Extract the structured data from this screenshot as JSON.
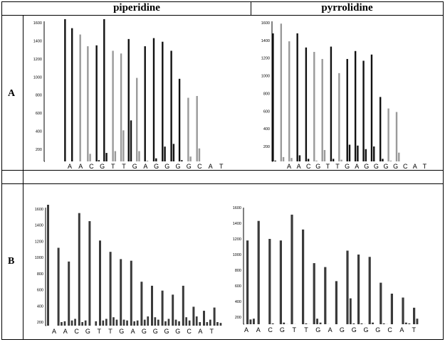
{
  "table": {
    "header_left": "piperidine",
    "header_right": "pyrrolidine",
    "row_a": "A",
    "row_b": "B"
  },
  "chart_data": [
    {
      "id": "A-piperidine",
      "type": "bar",
      "title": "",
      "ylim": [
        0,
        1700
      ],
      "yticks": [
        200,
        400,
        600,
        800,
        1000,
        1200,
        1400,
        1600
      ],
      "ytick_labels": [
        "200",
        "400",
        "600",
        "800",
        "1000",
        "1200",
        "1400",
        "1600"
      ],
      "categories": [
        "A",
        "A",
        "C",
        "G",
        "T",
        "T",
        "G",
        "A",
        "G",
        "G",
        "G",
        "G",
        "C",
        "A",
        "T"
      ],
      "bars": [
        {
          "pos": -0.6,
          "h": 1640,
          "c": "dark"
        },
        {
          "pos": 0.0,
          "h": 1540,
          "c": "dark"
        },
        {
          "pos": 0.7,
          "h": 1470,
          "c": "light"
        },
        {
          "pos": 1.35,
          "h": 1340,
          "c": "light"
        },
        {
          "pos": 1.55,
          "h": 150,
          "c": "light"
        },
        {
          "pos": 2.1,
          "h": 1350,
          "c": "dark"
        },
        {
          "pos": 2.3,
          "h": 80,
          "c": "dark"
        },
        {
          "pos": 2.75,
          "h": 1640,
          "c": "dark"
        },
        {
          "pos": 2.95,
          "h": 160,
          "c": "dark"
        },
        {
          "pos": 3.5,
          "h": 1290,
          "c": "light"
        },
        {
          "pos": 3.7,
          "h": 180,
          "c": "light"
        },
        {
          "pos": 4.2,
          "h": 1260,
          "c": "light"
        },
        {
          "pos": 4.4,
          "h": 410,
          "c": "light"
        },
        {
          "pos": 4.85,
          "h": 1420,
          "c": "dark"
        },
        {
          "pos": 5.05,
          "h": 520,
          "c": "dark"
        },
        {
          "pos": 5.55,
          "h": 990,
          "c": "light"
        },
        {
          "pos": 5.75,
          "h": 180,
          "c": "light"
        },
        {
          "pos": 6.25,
          "h": 1340,
          "c": "dark"
        },
        {
          "pos": 6.45,
          "h": 70,
          "c": "dark"
        },
        {
          "pos": 7.0,
          "h": 1430,
          "c": "dark"
        },
        {
          "pos": 7.2,
          "h": 100,
          "c": "dark"
        },
        {
          "pos": 7.75,
          "h": 1390,
          "c": "dark"
        },
        {
          "pos": 7.95,
          "h": 230,
          "c": "dark"
        },
        {
          "pos": 8.5,
          "h": 1290,
          "c": "dark"
        },
        {
          "pos": 8.7,
          "h": 260,
          "c": "dark"
        },
        {
          "pos": 9.2,
          "h": 980,
          "c": "dark"
        },
        {
          "pos": 9.4,
          "h": 80,
          "c": "dark"
        },
        {
          "pos": 9.95,
          "h": 770,
          "c": "light"
        },
        {
          "pos": 10.15,
          "h": 120,
          "c": "light"
        },
        {
          "pos": 10.7,
          "h": 790,
          "c": "light"
        },
        {
          "pos": 10.9,
          "h": 210,
          "c": "light"
        }
      ]
    },
    {
      "id": "A-pyrrolidine",
      "type": "bar",
      "title": "",
      "ylim": [
        0,
        1700
      ],
      "yticks": [
        200,
        400,
        600,
        800,
        1000,
        1200,
        1400,
        1600
      ],
      "ytick_labels": [
        "200",
        "400",
        "600",
        "800",
        "1000",
        "1200",
        "1400",
        "1600"
      ],
      "categories": [
        "A",
        "A",
        "C",
        "G",
        "T",
        "T",
        "G",
        "A",
        "G",
        "G",
        "G",
        "G",
        "C",
        "A",
        "T"
      ],
      "bars": [
        {
          "pos": -0.6,
          "h": 1480,
          "c": "dark"
        },
        {
          "pos": -0.4,
          "h": 40,
          "c": "dark"
        },
        {
          "pos": 0.1,
          "h": 1590,
          "c": "light"
        },
        {
          "pos": 0.3,
          "h": 80,
          "c": "light"
        },
        {
          "pos": 0.8,
          "h": 1390,
          "c": "light"
        },
        {
          "pos": 1.0,
          "h": 70,
          "c": "light"
        },
        {
          "pos": 1.5,
          "h": 1480,
          "c": "dark"
        },
        {
          "pos": 1.7,
          "h": 100,
          "c": "dark"
        },
        {
          "pos": 2.25,
          "h": 1320,
          "c": "dark"
        },
        {
          "pos": 2.45,
          "h": 60,
          "c": "dark"
        },
        {
          "pos": 2.95,
          "h": 1270,
          "c": "light"
        },
        {
          "pos": 3.15,
          "h": 40,
          "c": "light"
        },
        {
          "pos": 3.65,
          "h": 1190,
          "c": "light"
        },
        {
          "pos": 3.85,
          "h": 160,
          "c": "light"
        },
        {
          "pos": 4.4,
          "h": 1330,
          "c": "dark"
        },
        {
          "pos": 4.6,
          "h": 60,
          "c": "dark"
        },
        {
          "pos": 5.1,
          "h": 1030,
          "c": "light"
        },
        {
          "pos": 5.3,
          "h": 50,
          "c": "light"
        },
        {
          "pos": 5.8,
          "h": 1190,
          "c": "dark"
        },
        {
          "pos": 6.0,
          "h": 220,
          "c": "dark"
        },
        {
          "pos": 6.5,
          "h": 1280,
          "c": "dark"
        },
        {
          "pos": 6.7,
          "h": 210,
          "c": "dark"
        },
        {
          "pos": 7.2,
          "h": 1170,
          "c": "dark"
        },
        {
          "pos": 7.4,
          "h": 170,
          "c": "dark"
        },
        {
          "pos": 7.9,
          "h": 1240,
          "c": "dark"
        },
        {
          "pos": 8.1,
          "h": 200,
          "c": "dark"
        },
        {
          "pos": 8.65,
          "h": 760,
          "c": "dark"
        },
        {
          "pos": 8.85,
          "h": 60,
          "c": "dark"
        },
        {
          "pos": 9.35,
          "h": 630,
          "c": "light"
        },
        {
          "pos": 9.55,
          "h": 40,
          "c": "light"
        },
        {
          "pos": 10.05,
          "h": 590,
          "c": "light"
        },
        {
          "pos": 10.25,
          "h": 130,
          "c": "light"
        }
      ]
    },
    {
      "id": "B-piperidine",
      "type": "bar",
      "title": "",
      "ylim": [
        150,
        1700
      ],
      "yticks": [
        200,
        400,
        600,
        800,
        1000,
        1200,
        1400,
        1600
      ],
      "ytick_labels": [
        "200",
        "400",
        "600",
        "800",
        "1000",
        "1200",
        "1400",
        "1600"
      ],
      "categories": [
        "A",
        "A",
        "C",
        "G",
        "T",
        "T",
        "G",
        "A",
        "G",
        "G",
        "G",
        "G",
        "C",
        "A",
        "T"
      ],
      "bar_color": "#3a3a3a",
      "groups": [
        [
          1690,
          0,
          0
        ],
        [
          1120,
          200,
          210
        ],
        [
          950,
          220,
          240
        ],
        [
          1550,
          200,
          220
        ],
        [
          1450,
          0,
          210
        ],
        [
          1210,
          220,
          240
        ],
        [
          1070,
          260,
          230
        ],
        [
          980,
          230,
          220
        ],
        [
          960,
          210,
          220
        ],
        [
          700,
          230,
          270
        ],
        [
          650,
          260,
          230
        ],
        [
          590,
          210,
          240
        ],
        [
          540,
          230,
          210
        ],
        [
          650,
          260,
          220
        ],
        [
          390,
          270,
          200
        ],
        [
          340,
          200,
          230
        ],
        [
          380,
          200,
          190
        ]
      ]
    },
    {
      "id": "B-pyrrolidine",
      "type": "bar",
      "title": "",
      "ylim": [
        0,
        1700
      ],
      "yticks": [
        200,
        400,
        600,
        800,
        1000,
        1200,
        1400,
        1600
      ],
      "ytick_labels": [
        "200",
        "400",
        "600",
        "800",
        "1000",
        "1200",
        "1400",
        "1600"
      ],
      "categories": [
        "A",
        "A",
        "C",
        "G",
        "T",
        "T",
        "G",
        "A",
        "G",
        "G",
        "G",
        "G",
        "C",
        "A",
        "T"
      ],
      "bar_color": "#3a3a3a",
      "groups": [
        [
          1180,
          170,
          180
        ],
        [
          1430,
          90,
          0
        ],
        [
          1200,
          120,
          100
        ],
        [
          1180,
          130,
          110
        ],
        [
          1510,
          110,
          90
        ],
        [
          1320,
          120,
          110
        ],
        [
          890,
          180,
          130
        ],
        [
          840,
          110,
          90
        ],
        [
          660,
          80,
          70
        ],
        [
          1050,
          440,
          120
        ],
        [
          1000,
          120,
          110
        ],
        [
          970,
          130,
          100
        ],
        [
          640,
          120,
          110
        ],
        [
          500,
          100,
          90
        ],
        [
          450,
          130,
          120
        ],
        [
          320,
          180,
          80
        ],
        [
          0,
          0,
          0
        ]
      ]
    }
  ]
}
